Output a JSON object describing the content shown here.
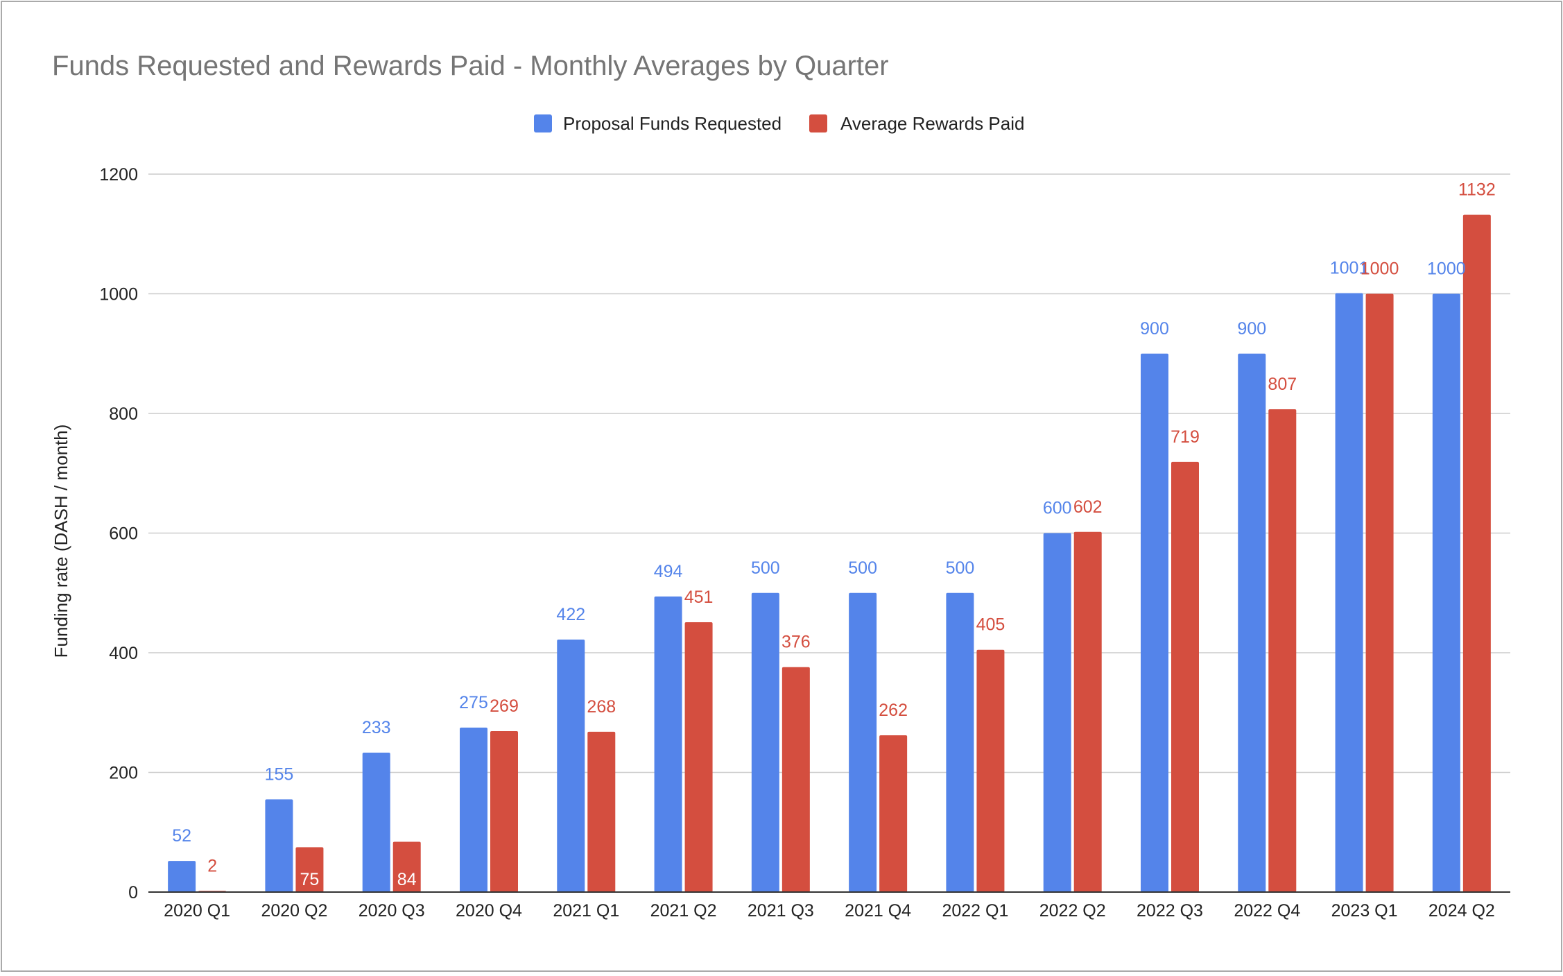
{
  "chart_data": {
    "type": "bar",
    "title": "Funds Requested and Rewards Paid - Monthly Averages by Quarter",
    "ylabel": "Funding rate (DASH / month)",
    "xlabel": "",
    "ylim": [
      0,
      1200
    ],
    "yticks": [
      0,
      200,
      400,
      600,
      800,
      1000,
      1200
    ],
    "grid": true,
    "legend_position": "top-center",
    "categories": [
      "2020 Q1",
      "2020 Q2",
      "2020 Q3",
      "2020 Q4",
      "2021 Q1",
      "2021 Q2",
      "2021 Q3",
      "2021 Q4",
      "2022 Q1",
      "2022 Q2",
      "2022 Q3",
      "2022 Q4",
      "2023 Q1",
      "2024 Q2"
    ],
    "series": [
      {
        "name": "Proposal Funds Requested",
        "color": "#5484ea",
        "label_color": "#5484ea",
        "values": [
          52,
          155,
          233,
          275,
          422,
          494,
          500,
          500,
          500,
          600,
          900,
          900,
          1001,
          1000
        ]
      },
      {
        "name": "Average Rewards Paid",
        "color": "#d44e3f",
        "label_color": "#d44e3f",
        "values": [
          2,
          75,
          84,
          269,
          268,
          451,
          376,
          262,
          405,
          602,
          719,
          807,
          1000,
          1132
        ]
      }
    ]
  },
  "colors": {
    "title": "#757575",
    "gridline": "#cccccc",
    "axis": "#333333",
    "background": "#ffffff",
    "frame": "#999999"
  }
}
